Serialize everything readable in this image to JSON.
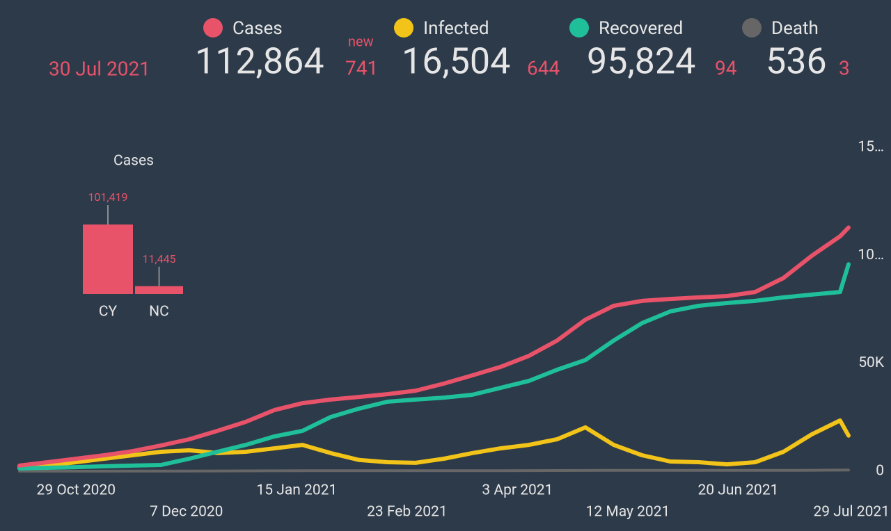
{
  "header": {
    "date": "30 Jul 2021",
    "new_label": "new"
  },
  "chart_data": [
    {
      "type": "line",
      "x": [
        "2020-10-09",
        "2020-10-19",
        "2020-10-29",
        "2020-11-08",
        "2020-11-18",
        "2020-11-28",
        "2020-12-08",
        "2020-12-18",
        "2020-12-28",
        "2021-01-07",
        "2021-01-17",
        "2021-01-27",
        "2021-02-06",
        "2021-02-16",
        "2021-02-26",
        "2021-03-08",
        "2021-03-18",
        "2021-03-28",
        "2021-04-07",
        "2021-04-17",
        "2021-04-27",
        "2021-05-07",
        "2021-05-17",
        "2021-05-27",
        "2021-06-06",
        "2021-06-16",
        "2021-06-26",
        "2021-07-06",
        "2021-07-16",
        "2021-07-26",
        "2021-07-29"
      ],
      "xlim": [
        "2020-10-09",
        "2021-07-29"
      ],
      "xticks": [
        {
          "value": "2020-10-29",
          "label": "29 Oct 2020"
        },
        {
          "value": "2020-12-07",
          "label": "7 Dec 2020"
        },
        {
          "value": "2021-01-15",
          "label": "15 Jan 2021"
        },
        {
          "value": "2021-02-23",
          "label": "23 Feb 2021"
        },
        {
          "value": "2021-04-03",
          "label": "3 Apr 2021"
        },
        {
          "value": "2021-05-12",
          "label": "12 May 2021"
        },
        {
          "value": "2021-06-20",
          "label": "20 Jun 2021"
        },
        {
          "value": "2021-07-29",
          "label": "29 Jul 2021"
        }
      ],
      "ylim": [
        0,
        150000
      ],
      "yticks": [
        0,
        {
          "value": 50000,
          "label": "50K"
        },
        {
          "value": 100000,
          "label": "10…"
        },
        {
          "value": 150000,
          "label": "15…"
        }
      ],
      "grid": false,
      "series": [
        {
          "name": "Cases",
          "color": "#e8536a",
          "total": "112,864",
          "new": 741,
          "values": [
            2600,
            4200,
            5800,
            7400,
            9300,
            11900,
            14800,
            18700,
            22900,
            28300,
            31500,
            33200,
            34400,
            35700,
            37300,
            40600,
            44400,
            48300,
            53400,
            60500,
            70200,
            76600,
            78900,
            79800,
            80500,
            81100,
            83000,
            89500,
            99800,
            108800,
            112864
          ]
        },
        {
          "name": "Infected",
          "color": "#f2c318",
          "total": "16,504",
          "new": 644,
          "values": [
            1900,
            2600,
            4200,
            5800,
            7400,
            9000,
            9700,
            8400,
            9000,
            10600,
            12200,
            8400,
            5200,
            4200,
            3900,
            5800,
            8400,
            10600,
            12200,
            14800,
            20300,
            12200,
            7400,
            4500,
            4200,
            3200,
            4200,
            9000,
            17100,
            23500,
            16504
          ]
        },
        {
          "name": "Recovered",
          "color": "#1fbf9a",
          "total": "95,824",
          "new": 94,
          "values": [
            1300,
            1600,
            1900,
            2300,
            2600,
            2900,
            5800,
            9000,
            12200,
            16100,
            18700,
            25100,
            29000,
            32200,
            33200,
            34100,
            35400,
            38600,
            41800,
            47000,
            51500,
            60500,
            68600,
            74000,
            76600,
            77900,
            78900,
            80500,
            81800,
            83000,
            95824
          ]
        },
        {
          "name": "Death",
          "color": "#666666",
          "total": "536",
          "new": 3,
          "values": [
            30,
            32,
            35,
            40,
            50,
            65,
            90,
            120,
            150,
            180,
            210,
            230,
            240,
            245,
            250,
            255,
            260,
            270,
            290,
            320,
            350,
            375,
            380,
            380,
            385,
            385,
            390,
            400,
            450,
            510,
            536
          ]
        }
      ]
    },
    {
      "type": "bar",
      "title": "Cases",
      "categories": [
        "CY",
        "NC"
      ],
      "values": [
        101419,
        11445
      ],
      "value_labels": [
        "101,419",
        "11,445"
      ],
      "color": "#e8536a"
    }
  ]
}
